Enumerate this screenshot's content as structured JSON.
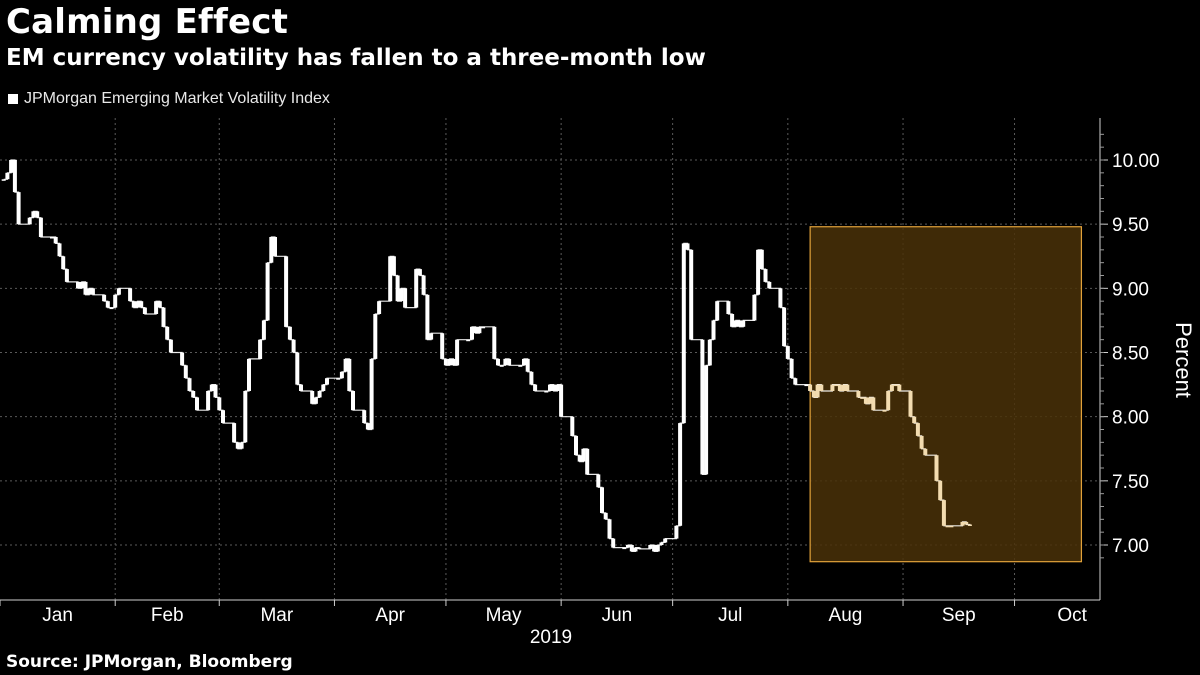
{
  "header": {
    "title": "Calming Effect",
    "subtitle": "EM currency volatility has fallen to a three-month low"
  },
  "legend": {
    "label": "JPMorgan Emerging Market Volatility Index"
  },
  "footer": {
    "source": "Source: JPMorgan, Bloomberg"
  },
  "colors": {
    "background": "#000000",
    "series": "#ffffff",
    "highlight": "#4a3108",
    "highlight_border": "#e2a23a",
    "grid": "#5a5a5a"
  },
  "chart_data": {
    "type": "line",
    "title": "Calming Effect",
    "subtitle": "EM currency volatility has fallen to a three-month low",
    "xlabel": "2019",
    "ylabel": "Percent",
    "ylim": [
      6.8,
      10.3
    ],
    "yticks": [
      7.0,
      7.5,
      8.0,
      8.5,
      9.0,
      9.5,
      10.0
    ],
    "ytick_labels": [
      "7.00",
      "7.50",
      "8.00",
      "8.50",
      "9.00",
      "9.50",
      "10.00"
    ],
    "xticks": [
      "Jan",
      "Feb",
      "Mar",
      "Apr",
      "May",
      "Jun",
      "Jul",
      "Aug",
      "Sep",
      "Oct"
    ],
    "grid": true,
    "legend_position": "top-left",
    "highlight_region": {
      "start_day": 218,
      "end_day": 291,
      "y_min": 6.87,
      "y_max": 9.48
    },
    "series": [
      {
        "name": "JPMorgan Emerging Market Volatility Index",
        "points": [
          [
            1,
            9.85
          ],
          [
            2,
            9.9
          ],
          [
            3,
            10.0
          ],
          [
            4,
            9.75
          ],
          [
            5,
            9.5
          ],
          [
            8,
            9.55
          ],
          [
            9,
            9.6
          ],
          [
            10,
            9.55
          ],
          [
            11,
            9.4
          ],
          [
            14,
            9.4
          ],
          [
            15,
            9.35
          ],
          [
            16,
            9.25
          ],
          [
            17,
            9.15
          ],
          [
            18,
            9.05
          ],
          [
            21,
            9.0
          ],
          [
            22,
            9.05
          ],
          [
            23,
            8.95
          ],
          [
            24,
            9.0
          ],
          [
            25,
            8.95
          ],
          [
            28,
            8.9
          ],
          [
            29,
            8.85
          ],
          [
            30,
            8.85
          ],
          [
            31,
            8.95
          ],
          [
            32,
            9.0
          ],
          [
            35,
            8.9
          ],
          [
            36,
            8.85
          ],
          [
            37,
            8.9
          ],
          [
            38,
            8.85
          ],
          [
            39,
            8.8
          ],
          [
            42,
            8.9
          ],
          [
            43,
            8.85
          ],
          [
            44,
            8.7
          ],
          [
            45,
            8.6
          ],
          [
            46,
            8.5
          ],
          [
            49,
            8.4
          ],
          [
            50,
            8.3
          ],
          [
            51,
            8.2
          ],
          [
            52,
            8.15
          ],
          [
            53,
            8.05
          ],
          [
            56,
            8.2
          ],
          [
            57,
            8.25
          ],
          [
            58,
            8.15
          ],
          [
            59,
            8.05
          ],
          [
            60,
            7.95
          ],
          [
            63,
            7.8
          ],
          [
            64,
            7.75
          ],
          [
            65,
            7.8
          ],
          [
            66,
            8.2
          ],
          [
            67,
            8.45
          ],
          [
            70,
            8.6
          ],
          [
            71,
            8.75
          ],
          [
            72,
            9.2
          ],
          [
            73,
            9.4
          ],
          [
            74,
            9.25
          ],
          [
            77,
            8.7
          ],
          [
            78,
            8.6
          ],
          [
            79,
            8.5
          ],
          [
            80,
            8.25
          ],
          [
            81,
            8.2
          ],
          [
            84,
            8.1
          ],
          [
            85,
            8.15
          ],
          [
            86,
            8.2
          ],
          [
            87,
            8.25
          ],
          [
            88,
            8.3
          ],
          [
            91,
            8.3
          ],
          [
            92,
            8.35
          ],
          [
            93,
            8.45
          ],
          [
            94,
            8.2
          ],
          [
            95,
            8.05
          ],
          [
            98,
            7.95
          ],
          [
            99,
            7.9
          ],
          [
            100,
            8.45
          ],
          [
            101,
            8.8
          ],
          [
            102,
            8.9
          ],
          [
            105,
            9.25
          ],
          [
            106,
            9.1
          ],
          [
            107,
            8.9
          ],
          [
            108,
            9.0
          ],
          [
            109,
            8.85
          ],
          [
            112,
            9.15
          ],
          [
            113,
            9.1
          ],
          [
            114,
            8.95
          ],
          [
            115,
            8.6
          ],
          [
            116,
            8.65
          ],
          [
            119,
            8.45
          ],
          [
            120,
            8.4
          ],
          [
            121,
            8.45
          ],
          [
            122,
            8.4
          ],
          [
            123,
            8.6
          ],
          [
            126,
            8.6
          ],
          [
            127,
            8.7
          ],
          [
            128,
            8.65
          ],
          [
            129,
            8.7
          ],
          [
            130,
            8.7
          ],
          [
            133,
            8.45
          ],
          [
            134,
            8.4
          ],
          [
            135,
            8.4
          ],
          [
            136,
            8.45
          ],
          [
            137,
            8.4
          ],
          [
            140,
            8.4
          ],
          [
            141,
            8.45
          ],
          [
            142,
            8.35
          ],
          [
            143,
            8.25
          ],
          [
            144,
            8.2
          ],
          [
            147,
            8.2
          ],
          [
            148,
            8.25
          ],
          [
            149,
            8.2
          ],
          [
            150,
            8.25
          ],
          [
            151,
            8.0
          ],
          [
            154,
            7.85
          ],
          [
            155,
            7.7
          ],
          [
            156,
            7.65
          ],
          [
            157,
            7.75
          ],
          [
            158,
            7.55
          ],
          [
            161,
            7.45
          ],
          [
            162,
            7.25
          ],
          [
            163,
            7.2
          ],
          [
            164,
            7.05
          ],
          [
            165,
            6.98
          ],
          [
            168,
            6.98
          ],
          [
            169,
            7.0
          ],
          [
            170,
            6.95
          ],
          [
            171,
            6.98
          ],
          [
            172,
            6.97
          ],
          [
            175,
            7.0
          ],
          [
            176,
            6.95
          ],
          [
            177,
            7.0
          ],
          [
            178,
            7.02
          ],
          [
            179,
            7.05
          ],
          [
            182,
            7.15
          ],
          [
            183,
            7.95
          ],
          [
            184,
            9.35
          ],
          [
            185,
            9.3
          ],
          [
            186,
            8.6
          ],
          [
            189,
            7.55
          ],
          [
            190,
            8.4
          ],
          [
            191,
            8.6
          ],
          [
            192,
            8.75
          ],
          [
            193,
            8.9
          ],
          [
            196,
            8.8
          ],
          [
            197,
            8.7
          ],
          [
            198,
            8.75
          ],
          [
            199,
            8.7
          ],
          [
            200,
            8.75
          ],
          [
            203,
            8.95
          ],
          [
            204,
            9.3
          ],
          [
            205,
            9.15
          ],
          [
            206,
            9.05
          ],
          [
            207,
            9.0
          ],
          [
            210,
            8.85
          ],
          [
            211,
            8.55
          ],
          [
            212,
            8.45
          ],
          [
            213,
            8.3
          ],
          [
            214,
            8.25
          ],
          [
            217,
            8.25
          ],
          [
            218,
            8.2
          ],
          [
            219,
            8.15
          ],
          [
            220,
            8.25
          ],
          [
            221,
            8.2
          ],
          [
            224,
            8.25
          ],
          [
            225,
            8.25
          ],
          [
            226,
            8.2
          ],
          [
            227,
            8.25
          ],
          [
            228,
            8.2
          ],
          [
            231,
            8.15
          ],
          [
            232,
            8.15
          ],
          [
            233,
            8.1
          ],
          [
            234,
            8.15
          ],
          [
            235,
            8.05
          ],
          [
            238,
            8.05
          ],
          [
            239,
            8.2
          ],
          [
            240,
            8.25
          ],
          [
            241,
            8.25
          ],
          [
            242,
            8.2
          ],
          [
            245,
            8.0
          ],
          [
            246,
            7.95
          ],
          [
            247,
            7.85
          ],
          [
            248,
            7.75
          ],
          [
            249,
            7.7
          ],
          [
            252,
            7.5
          ],
          [
            253,
            7.35
          ],
          [
            254,
            7.15
          ],
          [
            255,
            7.15
          ],
          [
            256,
            7.15
          ],
          [
            259,
            7.18
          ],
          [
            260,
            7.16
          ],
          [
            261,
            7.15
          ]
        ]
      }
    ]
  }
}
